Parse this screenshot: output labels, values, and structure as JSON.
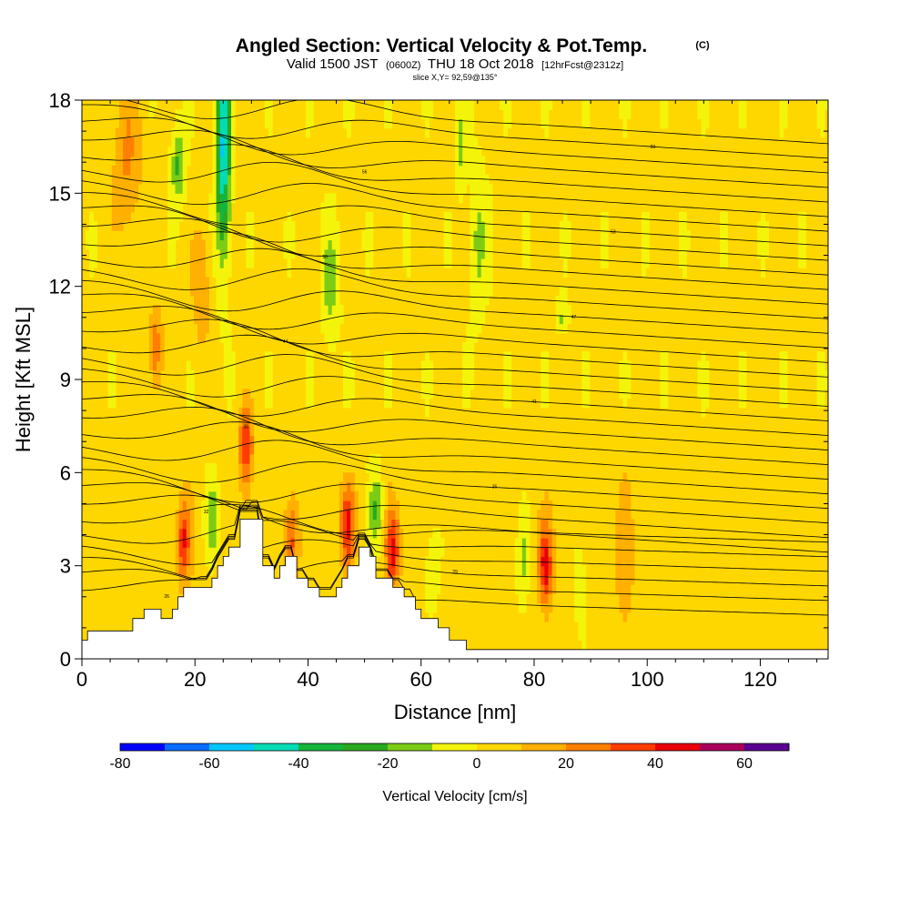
{
  "chart_data": {
    "type": "heatmap",
    "title": "Angled Section: Vertical Velocity & Pot.Temp.",
    "title_mark": "(C)",
    "subtitle": {
      "valid": "Valid 1500 JST",
      "utc": "(0600Z)",
      "date": "THU 18 Oct 2018",
      "forecast": "[12hrFcst@2312z]"
    },
    "slice_info": "slice X,Y= 92,59@135°",
    "xlabel": "Distance [nm]",
    "ylabel": "Height [Kft MSL]",
    "xlim": [
      0,
      132
    ],
    "ylim": [
      0,
      18
    ],
    "x_ticks": [
      0,
      20,
      40,
      60,
      80,
      100,
      120
    ],
    "y_ticks": [
      0,
      3,
      6,
      9,
      12,
      15,
      18
    ],
    "colorbar": {
      "label": "Vertical Velocity [cm/s]",
      "range": [
        -80,
        70
      ],
      "step": 10,
      "tick_values": [
        -80,
        -60,
        -40,
        -20,
        0,
        20,
        40,
        60
      ],
      "colors": [
        "#0000ff",
        "#0a6cff",
        "#00c8ff",
        "#00dcb4",
        "#16b43c",
        "#2aa820",
        "#7ccc16",
        "#f4f40a",
        "#ffd700",
        "#ffb000",
        "#ff7f00",
        "#ff3c00",
        "#e8000a",
        "#a8005a",
        "#5a0090"
      ]
    },
    "velocity_features": [
      {
        "x": 18,
        "y": 3.8,
        "value": 35
      },
      {
        "x": 29,
        "y": 6.8,
        "value": 38
      },
      {
        "x": 47,
        "y": 4.3,
        "value": 35
      },
      {
        "x": 55,
        "y": 3.5,
        "value": 38
      },
      {
        "x": 82,
        "y": 3.0,
        "value": 40
      },
      {
        "x": 13,
        "y": 10.0,
        "value": 25
      },
      {
        "x": 37,
        "y": 3.8,
        "value": 30
      },
      {
        "x": 25,
        "y": 16.5,
        "value": -55
      },
      {
        "x": 17,
        "y": 16.0,
        "value": -25
      },
      {
        "x": 52,
        "y": 4.8,
        "value": -25
      },
      {
        "x": 23,
        "y": 4.5,
        "value": -20
      }
    ],
    "terrain_heights_kft": [
      0.6,
      0.9,
      0.9,
      1.3,
      1.6,
      1.6,
      1.3,
      1.6,
      2.0,
      2.3,
      2.3,
      2.6,
      3.0,
      3.3,
      3.6,
      4.5,
      4.5,
      3.0,
      2.6,
      3.0,
      3.3,
      2.6,
      2.3,
      2.0,
      2.3,
      2.6,
      3.0,
      3.6,
      3.3,
      2.6,
      2.3,
      2.0,
      1.6,
      1.3,
      1.0,
      0.6,
      0.3,
      0.3
    ],
    "terrain_x_nm": [
      0,
      1,
      5,
      9,
      11,
      13,
      14,
      16,
      17,
      18,
      21,
      23,
      24,
      25,
      26,
      28,
      30,
      32,
      34,
      35,
      36,
      38,
      40,
      42,
      45,
      46,
      47,
      49,
      51,
      52,
      55,
      57,
      59,
      60,
      63,
      65,
      68,
      132
    ],
    "isentrope_levels": [
      26,
      27,
      28,
      29,
      30,
      31,
      32,
      33,
      34,
      35,
      36,
      37,
      38,
      39,
      40,
      41,
      42,
      43,
      44,
      45,
      46,
      47,
      48,
      49,
      50,
      51,
      52,
      53,
      54,
      55,
      56,
      57,
      58,
      59,
      60
    ]
  }
}
